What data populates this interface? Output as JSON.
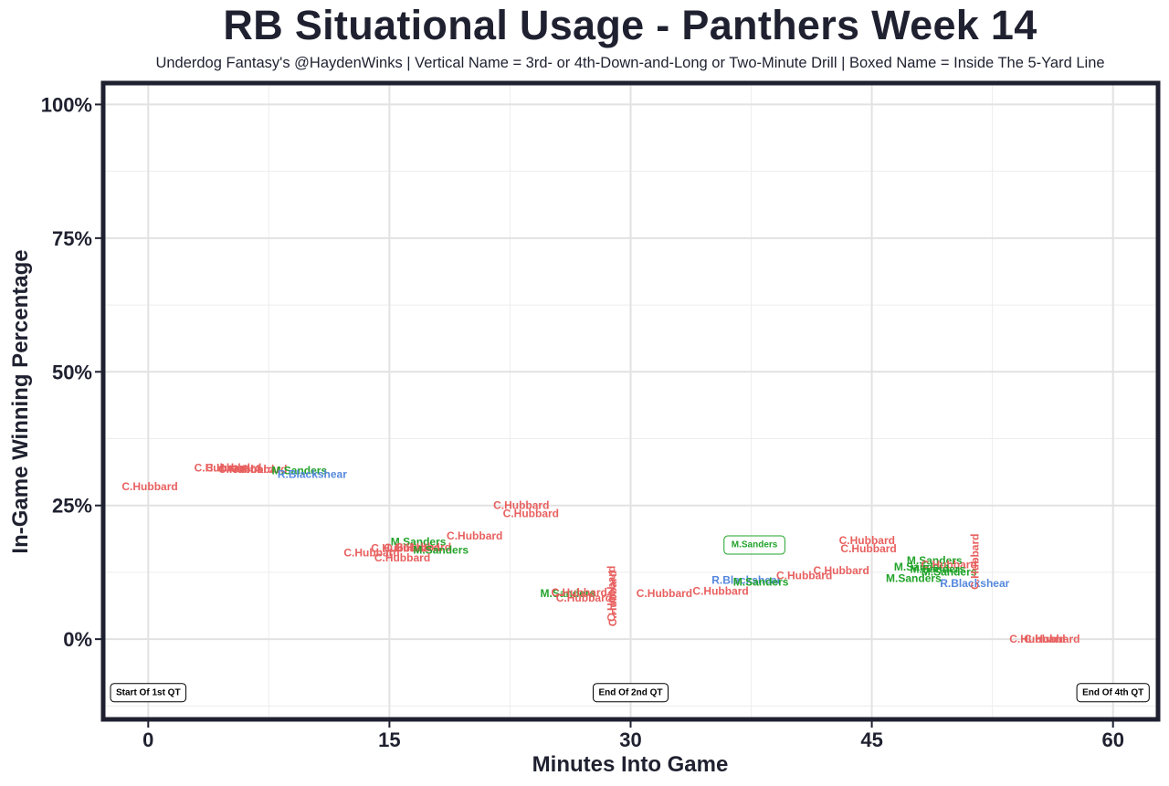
{
  "chart_data": {
    "type": "scatter",
    "title": "RB Situational Usage - Panthers Week 14",
    "subtitle": "Underdog Fantasy's @HaydenWinks | Vertical Name = 3rd- or 4th-Down-and-Long or Two-Minute Drill | Boxed Name = Inside The 5-Yard Line",
    "xlabel": "Minutes Into Game",
    "ylabel": "In-Game Winning Percentage",
    "xlim": [
      -2.8,
      62.8
    ],
    "ylim": [
      -15,
      104
    ],
    "x_ticks": [
      0,
      15,
      30,
      45,
      60
    ],
    "x_tick_labels": [
      "0",
      "15",
      "30",
      "45",
      "60"
    ],
    "y_ticks": [
      0,
      25,
      50,
      75,
      100
    ],
    "y_tick_labels": [
      "0%",
      "25%",
      "50%",
      "75%",
      "100%"
    ],
    "player_colors": {
      "C.Hubbard": "#e8605f",
      "M.Sanders": "#22a32a",
      "R.Blackshear": "#5588dd"
    },
    "period_markers": [
      {
        "label": "Start Of 1st QT",
        "x": 0,
        "y": -10
      },
      {
        "label": "End Of 2nd QT",
        "x": 30,
        "y": -10
      },
      {
        "label": "End Of 4th QT",
        "x": 60,
        "y": -10
      }
    ],
    "points": [
      {
        "player": "C.Hubbard",
        "x": 0.1,
        "y": 28.5
      },
      {
        "player": "C.Hubbard",
        "x": 4.6,
        "y": 32
      },
      {
        "player": "C.Hubbard",
        "x": 5.3,
        "y": 32
      },
      {
        "player": "C.Hubbard",
        "x": 6.1,
        "y": 31.8
      },
      {
        "player": "C.Hubbard",
        "x": 6.9,
        "y": 31.8
      },
      {
        "player": "M.Sanders",
        "x": 9.4,
        "y": 31.5
      },
      {
        "player": "R.Blackshear",
        "x": 10.2,
        "y": 30.8
      },
      {
        "player": "C.Hubbard",
        "x": 20.3,
        "y": 19.3
      },
      {
        "player": "C.Hubbard",
        "x": 23.2,
        "y": 25
      },
      {
        "player": "C.Hubbard",
        "x": 23.8,
        "y": 23.5
      },
      {
        "player": "M.Sanders",
        "x": 16.8,
        "y": 18.2
      },
      {
        "player": "C.Hubbard",
        "x": 15.6,
        "y": 17
      },
      {
        "player": "C.Hubbard",
        "x": 16.4,
        "y": 17.1
      },
      {
        "player": "C.Hubbard",
        "x": 17.1,
        "y": 17.2
      },
      {
        "player": "M.Sanders",
        "x": 18.2,
        "y": 16.7
      },
      {
        "player": "C.Hubbard",
        "x": 13.9,
        "y": 16.2
      },
      {
        "player": "C.Hubbard",
        "x": 15.8,
        "y": 15.2
      },
      {
        "player": "M.Sanders",
        "x": 26.1,
        "y": 8.6
      },
      {
        "player": "C.Hubbard",
        "x": 26.8,
        "y": 8.7
      },
      {
        "player": "C.Hubbard",
        "x": 27.1,
        "y": 7.7
      },
      {
        "player": "C.Hubbard",
        "x": 28.8,
        "y": 8.5,
        "vertical": true
      },
      {
        "player": "C.Hubbard",
        "x": 28.9,
        "y": 7.6,
        "vertical": true
      },
      {
        "player": "C.Hubbard",
        "x": 32.1,
        "y": 8.6
      },
      {
        "player": "C.Hubbard",
        "x": 35.6,
        "y": 9
      },
      {
        "player": "R.Blackshear",
        "x": 37.2,
        "y": 11
      },
      {
        "player": "M.Sanders",
        "x": 38.1,
        "y": 10.7
      },
      {
        "player": "M.Sanders",
        "x": 37.7,
        "y": 17.6,
        "boxed": true
      },
      {
        "player": "C.Hubbard",
        "x": 40.8,
        "y": 11.9
      },
      {
        "player": "C.Hubbard",
        "x": 43.1,
        "y": 12.8
      },
      {
        "player": "C.Hubbard",
        "x": 44.7,
        "y": 18.5
      },
      {
        "player": "C.Hubbard",
        "x": 44.8,
        "y": 16.9
      },
      {
        "player": "M.Sanders",
        "x": 48.9,
        "y": 14.7
      },
      {
        "player": "M.Sanders",
        "x": 48.1,
        "y": 13.5
      },
      {
        "player": "C.Hubbard",
        "x": 49.8,
        "y": 13.9
      },
      {
        "player": "M.Sanders",
        "x": 49.1,
        "y": 13.1
      },
      {
        "player": "M.Sanders",
        "x": 49.8,
        "y": 12.6
      },
      {
        "player": "M.Sanders",
        "x": 47.6,
        "y": 11.4
      },
      {
        "player": "R.Blackshear",
        "x": 51.4,
        "y": 10.4
      },
      {
        "player": "C.Hubbard",
        "x": 51.4,
        "y": 14.5,
        "vertical": true
      },
      {
        "player": "C.Hubbard",
        "x": 55.3,
        "y": 0
      },
      {
        "player": "C.Hubbard",
        "x": 56.2,
        "y": 0
      }
    ]
  }
}
